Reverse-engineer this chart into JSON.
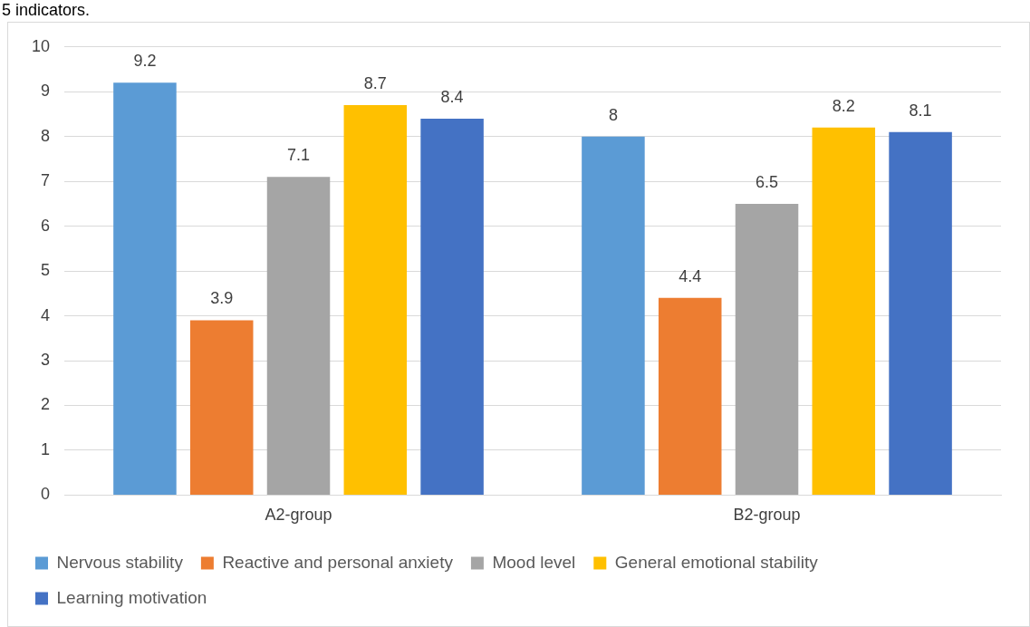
{
  "chart_data": {
    "type": "bar",
    "title": "5 indicators.",
    "categories": [
      "A2-group",
      "B2-group"
    ],
    "series": [
      {
        "name": "Nervous stability",
        "color": "#5b9bd5",
        "values": [
          9.2,
          8
        ]
      },
      {
        "name": "Reactive and personal anxiety",
        "color": "#ed7d31",
        "values": [
          3.9,
          4.4
        ]
      },
      {
        "name": "Mood level",
        "color": "#a5a5a5",
        "values": [
          7.1,
          6.5
        ]
      },
      {
        "name": "General emotional stability",
        "color": "#ffc000",
        "values": [
          8.7,
          8.2
        ]
      },
      {
        "name": "Learning motivation",
        "color": "#4472c4",
        "values": [
          8.4,
          8.1
        ]
      }
    ],
    "ylim": [
      0,
      10
    ],
    "yticks": [
      0,
      1,
      2,
      3,
      4,
      5,
      6,
      7,
      8,
      9,
      10
    ],
    "grid": "y",
    "legend": "bottom",
    "data_labels": true
  }
}
